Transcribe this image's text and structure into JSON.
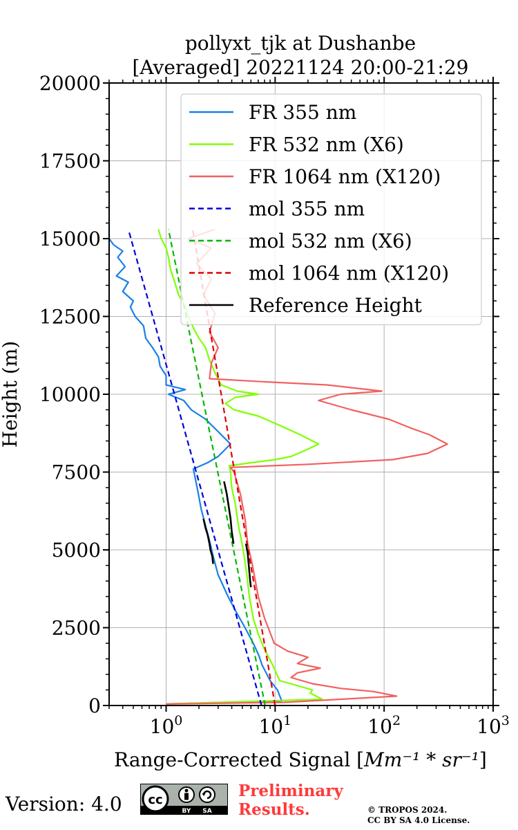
{
  "chart_data": {
    "type": "line",
    "title_line1": "pollyxt_tjk at Dushanbe",
    "title_line2": "[Averaged] 20221124 20:00-21:29",
    "xlabel_prefix": "Range-Corrected Signal [",
    "xlabel_math": "Mm⁻¹ * sr⁻¹",
    "xlabel_suffix": "]",
    "ylabel": "Height (m)",
    "x_scale": "log",
    "xlim": [
      0.3,
      1000
    ],
    "ylim": [
      0,
      20000
    ],
    "grid": true,
    "legend_position": "top-right",
    "y_ticks": [
      0,
      2500,
      5000,
      7500,
      10000,
      12500,
      15000,
      17500,
      20000
    ],
    "y_tick_labels": [
      "0",
      "2500",
      "5000",
      "7500",
      "10000",
      "12500",
      "15000",
      "17500",
      "20000"
    ],
    "x_ticks": [
      1,
      10,
      100,
      1000
    ],
    "x_tick_labels": [
      {
        "base": "10",
        "exp": "0"
      },
      {
        "base": "10",
        "exp": "1"
      },
      {
        "base": "10",
        "exp": "2"
      },
      {
        "base": "10",
        "exp": "3"
      }
    ],
    "series": [
      {
        "name": "FR 355 nm",
        "color": "#1a80e6",
        "style": "solid",
        "points": [
          [
            1.0,
            50
          ],
          [
            11.5,
            150
          ],
          [
            10.5,
            500
          ],
          [
            9.0,
            800
          ],
          [
            7.6,
            1300
          ],
          [
            7.1,
            1600
          ],
          [
            6.3,
            2000
          ],
          [
            5.3,
            2500
          ],
          [
            4.4,
            3000
          ],
          [
            3.7,
            3500
          ],
          [
            3.0,
            4200
          ],
          [
            2.7,
            4800
          ],
          [
            2.5,
            5300
          ],
          [
            2.25,
            5900
          ],
          [
            2.1,
            6300
          ],
          [
            1.95,
            6900
          ],
          [
            1.85,
            7300
          ],
          [
            1.78,
            7600
          ],
          [
            2.4,
            7800
          ],
          [
            3.0,
            8000
          ],
          [
            3.9,
            8400
          ],
          [
            3.0,
            8800
          ],
          [
            2.3,
            9200
          ],
          [
            1.7,
            9500
          ],
          [
            1.45,
            9800
          ],
          [
            1.05,
            10000
          ],
          [
            1.5,
            10150
          ],
          [
            1.0,
            10300
          ],
          [
            1.0,
            10600
          ],
          [
            0.88,
            10900
          ],
          [
            0.85,
            11200
          ],
          [
            0.75,
            11500
          ],
          [
            0.65,
            11800
          ],
          [
            0.62,
            12200
          ],
          [
            0.52,
            12500
          ],
          [
            0.47,
            12800
          ],
          [
            0.5,
            13000
          ],
          [
            0.4,
            13300
          ],
          [
            0.45,
            13600
          ],
          [
            0.35,
            13800
          ],
          [
            0.42,
            14100
          ],
          [
            0.36,
            14400
          ],
          [
            0.4,
            14600
          ],
          [
            0.33,
            14800
          ],
          [
            0.3,
            15000
          ],
          [
            0.3,
            15300
          ]
        ]
      },
      {
        "name": "FR 532 nm (X6)",
        "color": "#80ff00",
        "style": "solid",
        "points": [
          [
            1.0,
            50
          ],
          [
            27,
            200
          ],
          [
            21,
            400
          ],
          [
            22,
            500
          ],
          [
            11,
            800
          ],
          [
            9.5,
            1300
          ],
          [
            8.0,
            1800
          ],
          [
            7.0,
            2300
          ],
          [
            6.3,
            2800
          ],
          [
            5.8,
            3500
          ],
          [
            5.5,
            4200
          ],
          [
            5.1,
            5000
          ],
          [
            4.6,
            5800
          ],
          [
            4.3,
            6500
          ],
          [
            4.0,
            7000
          ],
          [
            3.9,
            7500
          ],
          [
            3.8,
            7700
          ],
          [
            6.0,
            7800
          ],
          [
            10,
            7900
          ],
          [
            14,
            8000
          ],
          [
            19,
            8200
          ],
          [
            25,
            8400
          ],
          [
            17,
            8700
          ],
          [
            11,
            9000
          ],
          [
            7.0,
            9300
          ],
          [
            4.2,
            9500
          ],
          [
            3.5,
            9700
          ],
          [
            4.3,
            9900
          ],
          [
            7.0,
            10000
          ],
          [
            4.5,
            10100
          ],
          [
            3.2,
            10300
          ],
          [
            2.8,
            10700
          ],
          [
            2.5,
            11100
          ],
          [
            2.3,
            11500
          ],
          [
            2.0,
            11800
          ],
          [
            1.8,
            12100
          ],
          [
            1.6,
            12500
          ],
          [
            1.5,
            12800
          ],
          [
            1.3,
            13200
          ],
          [
            1.2,
            13600
          ],
          [
            1.1,
            14000
          ],
          [
            1.05,
            14400
          ],
          [
            1.0,
            14700
          ],
          [
            0.9,
            15000
          ],
          [
            0.85,
            15300
          ]
        ]
      },
      {
        "name": "FR 1064 nm (X120)",
        "color": "#f26060",
        "style": "solid",
        "points": [
          [
            1.0,
            50
          ],
          [
            12,
            100
          ],
          [
            130,
            300
          ],
          [
            80,
            450
          ],
          [
            40,
            550
          ],
          [
            22,
            700
          ],
          [
            14,
            900
          ],
          [
            16,
            1050
          ],
          [
            26,
            1200
          ],
          [
            16,
            1350
          ],
          [
            20,
            1550
          ],
          [
            13,
            1750
          ],
          [
            9.8,
            2000
          ],
          [
            8.0,
            2800
          ],
          [
            7.0,
            3500
          ],
          [
            6.2,
            4500
          ],
          [
            5.6,
            5200
          ],
          [
            5.3,
            6000
          ],
          [
            4.8,
            6800
          ],
          [
            4.2,
            7500
          ],
          [
            3.9,
            7650
          ],
          [
            20,
            7750
          ],
          [
            120,
            7900
          ],
          [
            250,
            8100
          ],
          [
            380,
            8400
          ],
          [
            260,
            8700
          ],
          [
            180,
            8900
          ],
          [
            110,
            9200
          ],
          [
            50,
            9500
          ],
          [
            25,
            9800
          ],
          [
            40,
            10000
          ],
          [
            95,
            10100
          ],
          [
            30,
            10300
          ],
          [
            8.0,
            10400
          ],
          [
            2.5,
            10500
          ],
          [
            2.6,
            11000
          ],
          [
            3.0,
            11500
          ],
          [
            2.5,
            12000
          ],
          [
            2.8,
            12600
          ],
          [
            2.2,
            13200
          ],
          [
            2.6,
            13700
          ],
          [
            1.9,
            14200
          ],
          [
            2.6,
            14700
          ],
          [
            1.6,
            15000
          ],
          [
            2.8,
            15300
          ]
        ]
      },
      {
        "name": "mol 355 nm",
        "color": "#0000dd",
        "style": "dashed",
        "points": [
          [
            7.5,
            0
          ],
          [
            0.45,
            15300
          ]
        ]
      },
      {
        "name": "mol 532 nm (X6)",
        "color": "#00b800",
        "style": "dashed",
        "points": [
          [
            8.1,
            0
          ],
          [
            1.05,
            15300
          ]
        ]
      },
      {
        "name": "mol 1064 nm (X120)",
        "color": "#dd0000",
        "style": "dashed",
        "points": [
          [
            10.0,
            0
          ],
          [
            1.75,
            15300
          ]
        ]
      },
      {
        "name": "Reference Height",
        "color": "#000000",
        "style": "solid",
        "segments": [
          [
            [
              2.2,
              6000
            ],
            [
              2.3,
              5700
            ],
            [
              2.4,
              5500
            ],
            [
              2.5,
              5200
            ],
            [
              2.55,
              5000
            ],
            [
              2.65,
              4800
            ],
            [
              2.7,
              4550
            ]
          ],
          [
            [
              3.4,
              7200
            ],
            [
              3.6,
              6800
            ],
            [
              3.75,
              6400
            ],
            [
              3.9,
              6000
            ],
            [
              4.0,
              5600
            ],
            [
              4.15,
              5200
            ]
          ],
          [
            [
              5.4,
              5200
            ],
            [
              5.6,
              4900
            ],
            [
              5.7,
              4600
            ],
            [
              5.8,
              4300
            ],
            [
              5.9,
              4000
            ],
            [
              6.0,
              3800
            ]
          ]
        ]
      }
    ]
  },
  "footer": {
    "version_label": "Version: 4.0",
    "cc_top": "cc",
    "cc_by": "BY",
    "cc_sa": "SA",
    "preliminary_line1": "Preliminary",
    "preliminary_line2": "Results.",
    "copyright_line1": "© TROPOS 2024.",
    "copyright_line2": "CC BY SA 4.0 License."
  }
}
